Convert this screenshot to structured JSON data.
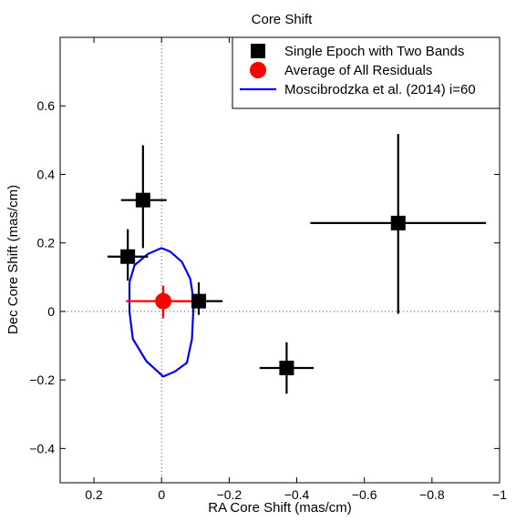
{
  "chart_data": {
    "type": "scatter",
    "title": "Core Shift",
    "xlabel": "RA Core Shift (mas/cm)",
    "ylabel": "Dec Core Shift (mas/cm)",
    "xlim": [
      0.3,
      -1.0
    ],
    "ylim": [
      -0.5,
      0.8
    ],
    "x_reversed": true,
    "xticks": [
      0.2,
      0,
      -0.2,
      -0.4,
      -0.6,
      -0.8,
      -1
    ],
    "xtick_labels": [
      "0.2",
      "0",
      "−0.2",
      "−0.4",
      "−0.6",
      "−0.8",
      "−1"
    ],
    "yticks": [
      -0.4,
      -0.2,
      0,
      0.2,
      0.4,
      0.6
    ],
    "ytick_labels": [
      "−0.4",
      "−0.2",
      "0",
      "0.2",
      "0.4",
      "0.6"
    ],
    "zero_lines": true,
    "grid": false,
    "legend_position": "top-right",
    "series": [
      {
        "name": "Single Epoch with Two Bands",
        "marker": "square",
        "color": "#000000",
        "points": [
          {
            "x": 0.1,
            "y": 0.16,
            "xerr": [
              0.06,
              0.06
            ],
            "yerr": [
              0.07,
              0.08
            ]
          },
          {
            "x": 0.055,
            "y": 0.325,
            "xerr": [
              0.065,
              0.07
            ],
            "yerr": [
              0.14,
              0.16
            ]
          },
          {
            "x": -0.11,
            "y": 0.03,
            "xerr": [
              0.07,
              0.07
            ],
            "yerr": [
              0.04,
              0.055
            ]
          },
          {
            "x": -0.37,
            "y": -0.165,
            "xerr": [
              0.08,
              0.08
            ],
            "yerr": [
              0.075,
              0.075
            ]
          },
          {
            "x": -0.7,
            "y": 0.258,
            "xerr": [
              0.26,
              0.26
            ],
            "yerr": [
              0.265,
              0.26
            ]
          }
        ]
      },
      {
        "name": "Average of All Residuals",
        "marker": "circle",
        "color": "#ff0000",
        "points": [
          {
            "x": -0.005,
            "y": 0.03,
            "xerr": [
              0.11,
              0.11
            ],
            "yerr": [
              0.05,
              0.045
            ]
          }
        ]
      },
      {
        "name": "Moscibrodzka et al. (2014) i=60",
        "marker": "line",
        "color": "#0000ff",
        "polyline": [
          [
            0.0,
            0.185
          ],
          [
            -0.025,
            0.175
          ],
          [
            -0.06,
            0.145
          ],
          [
            -0.085,
            0.095
          ],
          [
            -0.095,
            0.03
          ],
          [
            -0.09,
            -0.08
          ],
          [
            -0.075,
            -0.15
          ],
          [
            -0.04,
            -0.175
          ],
          [
            -0.005,
            -0.19
          ],
          [
            0.045,
            -0.145
          ],
          [
            0.085,
            -0.08
          ],
          [
            0.095,
            0.0
          ],
          [
            0.095,
            0.085
          ],
          [
            0.08,
            0.135
          ],
          [
            0.04,
            0.168
          ],
          [
            0.0,
            0.185
          ]
        ]
      }
    ]
  }
}
